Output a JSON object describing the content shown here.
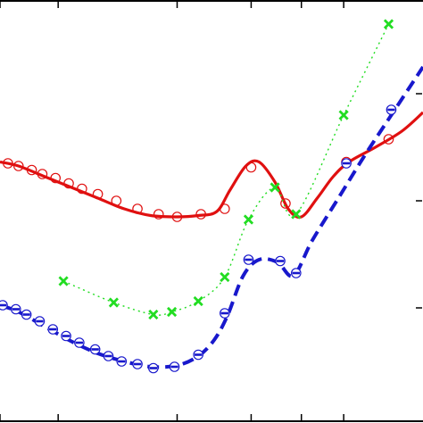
{
  "chart_data": {
    "type": "line",
    "title": "",
    "xlabel": "",
    "ylabel": "",
    "grid": false,
    "legend": "none",
    "xlim": [
      -0.2,
      15.8
    ],
    "ylim": [
      0,
      15.8
    ],
    "series": [
      {
        "color": "#e01010",
        "line_style": "solid",
        "marker": "open-circle",
        "curve": [
          [
            -0.2,
            9.75
          ],
          [
            0.5,
            9.6
          ],
          [
            1.5,
            9.2
          ],
          [
            2.5,
            8.8
          ],
          [
            3.5,
            8.4
          ],
          [
            4.5,
            8.0
          ],
          [
            5.5,
            7.75
          ],
          [
            6.5,
            7.7
          ],
          [
            7.3,
            7.75
          ],
          [
            8.0,
            7.9
          ],
          [
            8.5,
            8.7
          ],
          [
            9.1,
            9.6
          ],
          [
            9.6,
            9.75
          ],
          [
            10.2,
            9.0
          ],
          [
            10.7,
            8.0
          ],
          [
            11.2,
            7.7
          ],
          [
            11.8,
            8.4
          ],
          [
            12.4,
            9.2
          ],
          [
            13.0,
            9.75
          ],
          [
            14.0,
            10.3
          ],
          [
            15.0,
            10.9
          ],
          [
            15.8,
            11.6
          ]
        ],
        "markers": [
          [
            0.1,
            9.7
          ],
          [
            0.5,
            9.6
          ],
          [
            1.0,
            9.45
          ],
          [
            1.4,
            9.3
          ],
          [
            1.9,
            9.15
          ],
          [
            2.4,
            8.95
          ],
          [
            2.9,
            8.75
          ],
          [
            3.5,
            8.55
          ],
          [
            4.2,
            8.3
          ],
          [
            5.0,
            8.0
          ],
          [
            5.8,
            7.8
          ],
          [
            6.5,
            7.7
          ],
          [
            7.4,
            7.8
          ],
          [
            8.3,
            8.0
          ],
          [
            9.3,
            9.55
          ],
          [
            10.6,
            8.2
          ],
          [
            12.9,
            9.75
          ],
          [
            14.5,
            10.6
          ]
        ]
      },
      {
        "color": "#22dd22",
        "line_style": "dotted",
        "marker": "x",
        "curve": [
          [
            2.2,
            5.3
          ],
          [
            4.1,
            4.5
          ],
          [
            5.6,
            4.05
          ],
          [
            6.3,
            4.15
          ],
          [
            7.3,
            4.55
          ],
          [
            8.3,
            5.45
          ],
          [
            9.2,
            7.6
          ],
          [
            10.2,
            8.8
          ],
          [
            11.0,
            7.8
          ],
          [
            12.8,
            11.5
          ],
          [
            14.5,
            14.9
          ]
        ],
        "markers": [
          [
            2.2,
            5.3
          ],
          [
            4.1,
            4.5
          ],
          [
            5.6,
            4.05
          ],
          [
            6.3,
            4.15
          ],
          [
            7.3,
            4.55
          ],
          [
            8.3,
            5.45
          ],
          [
            9.2,
            7.6
          ],
          [
            10.2,
            8.8
          ],
          [
            11.0,
            7.8
          ],
          [
            12.8,
            11.5
          ],
          [
            14.5,
            14.9
          ]
        ]
      },
      {
        "color": "#1818cc",
        "line_style": "dashed",
        "marker": "open-circle-dash",
        "curve": [
          [
            -0.2,
            4.4
          ],
          [
            0.5,
            4.15
          ],
          [
            1.5,
            3.6
          ],
          [
            2.5,
            3.05
          ],
          [
            3.5,
            2.6
          ],
          [
            4.5,
            2.3
          ],
          [
            5.5,
            2.1
          ],
          [
            6.5,
            2.15
          ],
          [
            7.3,
            2.5
          ],
          [
            7.9,
            3.1
          ],
          [
            8.4,
            4.0
          ],
          [
            9.0,
            5.5
          ],
          [
            9.6,
            6.1
          ],
          [
            10.3,
            6.0
          ],
          [
            10.9,
            5.5
          ],
          [
            11.6,
            6.8
          ],
          [
            12.6,
            8.4
          ],
          [
            13.6,
            10.0
          ],
          [
            14.6,
            11.5
          ],
          [
            15.8,
            13.3
          ]
        ],
        "markers": [
          [
            -0.1,
            4.4
          ],
          [
            0.4,
            4.25
          ],
          [
            0.8,
            4.05
          ],
          [
            1.3,
            3.8
          ],
          [
            1.8,
            3.5
          ],
          [
            2.3,
            3.25
          ],
          [
            2.8,
            3.0
          ],
          [
            3.4,
            2.75
          ],
          [
            3.9,
            2.5
          ],
          [
            4.4,
            2.3
          ],
          [
            5.0,
            2.2
          ],
          [
            5.6,
            2.05
          ],
          [
            6.4,
            2.1
          ],
          [
            7.3,
            2.55
          ],
          [
            8.3,
            4.1
          ],
          [
            9.2,
            6.1
          ],
          [
            10.4,
            6.05
          ],
          [
            11.0,
            5.6
          ],
          [
            12.9,
            9.7
          ],
          [
            14.6,
            11.7
          ]
        ]
      }
    ]
  }
}
